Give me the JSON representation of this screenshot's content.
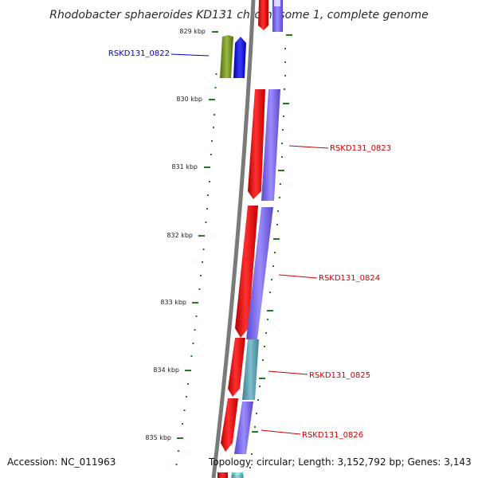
{
  "title": "Rhodobacter sphaeroides KD131 chromosome 1, complete genome",
  "ticks": [
    "829 kbp",
    "830 kbp",
    "831 kbp",
    "832 kbp",
    "833 kbp",
    "834 kbp",
    "835 kbp"
  ],
  "genes": [
    {
      "label": "RSKD131_0822",
      "color": "#0000cc"
    },
    {
      "label": "RSKD131_0823",
      "color": "#cc0000"
    },
    {
      "label": "RSKD131_0824",
      "color": "#cc0000"
    },
    {
      "label": "RSKD131_0825",
      "color": "#cc0000"
    },
    {
      "label": "RSKD131_0826",
      "color": "#cc0000"
    }
  ],
  "colors": {
    "backbone": "#7a7a7a",
    "forward_cds": "#ff0000",
    "reverse_cds": "#0000ff",
    "feature_green": "#6b8e23",
    "blast_purple": "#7b68ee",
    "blast_teal": "#5f9ea0",
    "tick": "#1e7b1e",
    "cyan": "#00ffff"
  },
  "footer": {
    "accession": "Accession: NC_011963",
    "summary": "Topology: circular; Length: 3,152,792 bp; Genes: 3,143"
  }
}
